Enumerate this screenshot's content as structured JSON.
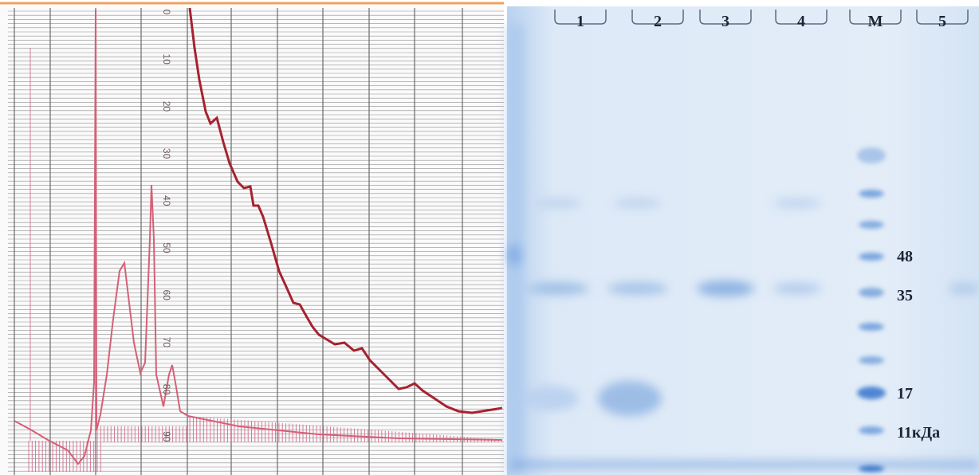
{
  "chromatogram": {
    "scale_labels": [
      "0",
      "10",
      "20",
      "30",
      "40",
      "50",
      "60",
      "70",
      "80",
      "90"
    ]
  },
  "gel": {
    "lane_labels": [
      "1",
      "2",
      "3",
      "4",
      "M",
      "5"
    ],
    "marker_labels": [
      "48",
      "35",
      "17",
      "11кДа"
    ]
  }
}
